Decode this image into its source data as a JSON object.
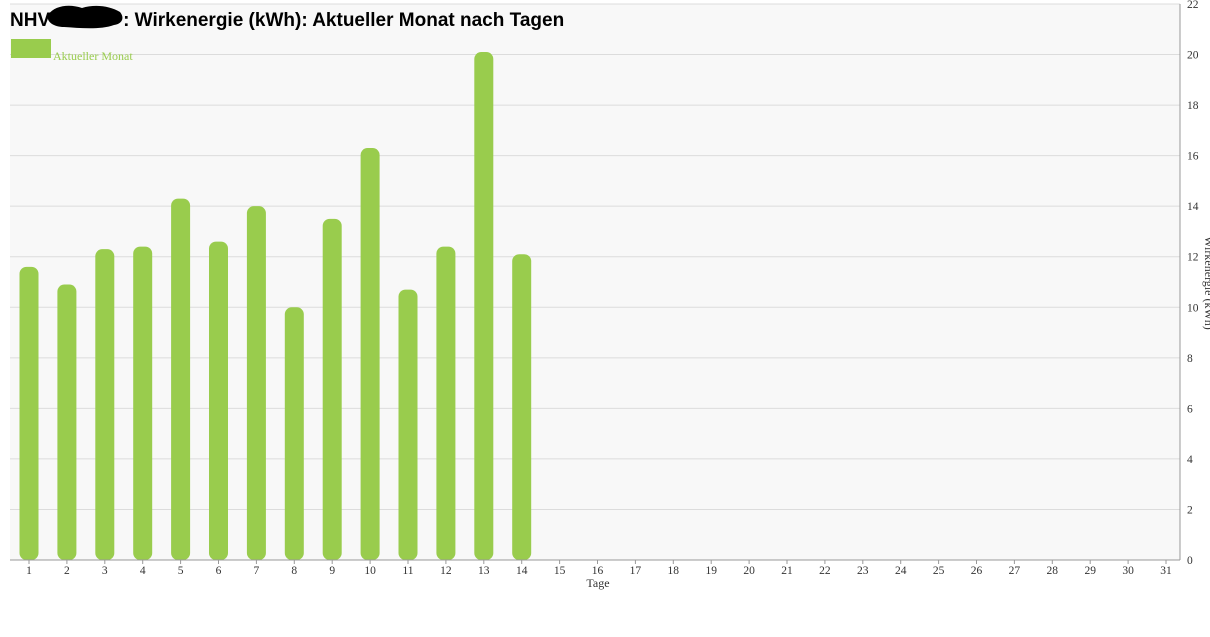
{
  "chart_data": {
    "type": "bar",
    "title_prefix": "NHV",
    "title_suffix": ": Wirkenergie (kWh): Aktueller Monat nach Tagen",
    "xlabel": "Tage",
    "ylabel": "Wirkenergie (kWh)",
    "ylim": [
      0,
      22
    ],
    "yticks": [
      0,
      2,
      4,
      6,
      8,
      10,
      12,
      14,
      16,
      18,
      20,
      22
    ],
    "y_axis_side": "right",
    "grid": true,
    "legend_position": "top-left",
    "categories": [
      "1",
      "2",
      "3",
      "4",
      "5",
      "6",
      "7",
      "8",
      "9",
      "10",
      "11",
      "12",
      "13",
      "14",
      "15",
      "16",
      "17",
      "18",
      "19",
      "20",
      "21",
      "22",
      "23",
      "24",
      "25",
      "26",
      "27",
      "28",
      "29",
      "30",
      "31"
    ],
    "series": [
      {
        "name": "Aktueller Monat",
        "color": "#99cc4d",
        "values": [
          11.6,
          10.9,
          12.3,
          12.4,
          14.3,
          12.6,
          14.0,
          10.0,
          13.5,
          16.3,
          10.7,
          12.4,
          20.1,
          12.1,
          null,
          null,
          null,
          null,
          null,
          null,
          null,
          null,
          null,
          null,
          null,
          null,
          null,
          null,
          null,
          null,
          null
        ]
      }
    ]
  },
  "colors": {
    "plot_background": "#f8f8f8",
    "grid": "#dcdcdc",
    "bar": "#99cc4d"
  }
}
